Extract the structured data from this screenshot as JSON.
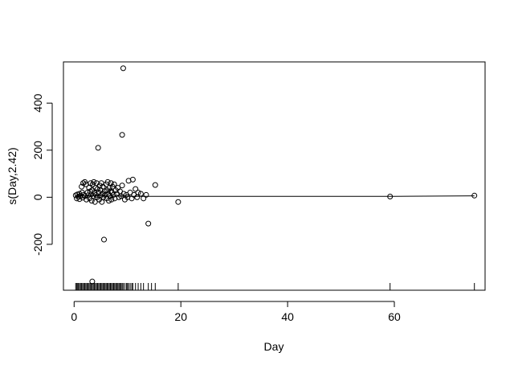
{
  "chart_data": {
    "type": "scatter",
    "title": "",
    "xlabel": "Day",
    "ylabel": "s(Day,2.42)",
    "xlim": [
      -2,
      77
    ],
    "ylim": [
      -395,
      575
    ],
    "x_ticks": [
      0,
      20,
      40,
      60
    ],
    "x_tick_labels": [
      "0",
      "20",
      "40",
      "60"
    ],
    "y_ticks": [
      -200,
      0,
      200,
      400
    ],
    "y_tick_labels": [
      "-200",
      "0",
      "200",
      "400"
    ],
    "grid": false,
    "legend": "none",
    "colors": {
      "points": "#000000",
      "line": "#000000",
      "rug": "#000000"
    },
    "smooth_line": {
      "x": [
        0.5,
        2,
        4,
        6,
        8,
        10,
        14,
        20,
        30,
        40,
        55,
        60,
        75
      ],
      "y": [
        8,
        7,
        6,
        5,
        4.5,
        4,
        4,
        4,
        4,
        4,
        4,
        4,
        6
      ]
    },
    "points": [
      [
        0.3,
        8
      ],
      [
        0.5,
        -5
      ],
      [
        0.6,
        12
      ],
      [
        0.8,
        3
      ],
      [
        1.0,
        15
      ],
      [
        1.0,
        -8
      ],
      [
        1.2,
        6
      ],
      [
        1.4,
        45
      ],
      [
        1.5,
        20
      ],
      [
        1.6,
        -2
      ],
      [
        1.7,
        60
      ],
      [
        1.8,
        10
      ],
      [
        2.0,
        65
      ],
      [
        2.0,
        5
      ],
      [
        2.2,
        55
      ],
      [
        2.3,
        -10
      ],
      [
        2.5,
        20
      ],
      [
        2.6,
        8
      ],
      [
        2.8,
        40
      ],
      [
        2.9,
        -5
      ],
      [
        3.0,
        25
      ],
      [
        3.1,
        60
      ],
      [
        3.2,
        12
      ],
      [
        3.3,
        -15
      ],
      [
        3.4,
        30
      ],
      [
        3.5,
        55
      ],
      [
        3.6,
        5
      ],
      [
        3.7,
        65
      ],
      [
        3.8,
        18
      ],
      [
        3.9,
        -20
      ],
      [
        4.0,
        40
      ],
      [
        4.1,
        10
      ],
      [
        4.2,
        60
      ],
      [
        4.3,
        0
      ],
      [
        4.4,
        35
      ],
      [
        4.5,
        210
      ],
      [
        4.6,
        20
      ],
      [
        4.7,
        -10
      ],
      [
        4.8,
        50
      ],
      [
        4.9,
        5
      ],
      [
        5.0,
        30
      ],
      [
        5.1,
        60
      ],
      [
        5.2,
        -20
      ],
      [
        5.3,
        15
      ],
      [
        5.4,
        45
      ],
      [
        5.5,
        0
      ],
      [
        5.6,
        -180
      ],
      [
        5.7,
        25
      ],
      [
        5.8,
        10
      ],
      [
        6.0,
        55
      ],
      [
        6.1,
        -5
      ],
      [
        6.2,
        30
      ],
      [
        6.3,
        65
      ],
      [
        6.4,
        15
      ],
      [
        6.5,
        -15
      ],
      [
        6.6,
        40
      ],
      [
        6.7,
        5
      ],
      [
        6.8,
        25
      ],
      [
        6.9,
        60
      ],
      [
        7.0,
        -10
      ],
      [
        7.1,
        20
      ],
      [
        7.2,
        45
      ],
      [
        7.4,
        10
      ],
      [
        7.5,
        55
      ],
      [
        7.6,
        -5
      ],
      [
        7.8,
        30
      ],
      [
        8.0,
        15
      ],
      [
        8.2,
        40
      ],
      [
        8.4,
        0
      ],
      [
        8.6,
        25
      ],
      [
        8.8,
        5
      ],
      [
        9.0,
        265
      ],
      [
        9.0,
        50
      ],
      [
        9.2,
        548
      ],
      [
        9.3,
        15
      ],
      [
        9.5,
        -10
      ],
      [
        9.8,
        10
      ],
      [
        10.0,
        0
      ],
      [
        10.2,
        70
      ],
      [
        10.5,
        20
      ],
      [
        10.8,
        -5
      ],
      [
        11.0,
        75
      ],
      [
        11.2,
        10
      ],
      [
        11.5,
        35
      ],
      [
        11.8,
        0
      ],
      [
        12.0,
        20
      ],
      [
        12.5,
        15
      ],
      [
        13.0,
        -5
      ],
      [
        13.5,
        10
      ],
      [
        13.9,
        -112
      ],
      [
        15.2,
        52
      ],
      [
        19.5,
        -20
      ],
      [
        59.2,
        3
      ],
      [
        75.0,
        7
      ]
    ],
    "rug_x": [
      0.3,
      0.5,
      0.6,
      0.8,
      1.0,
      1.2,
      1.4,
      1.6,
      1.8,
      2.0,
      2.2,
      2.4,
      2.6,
      2.8,
      3.0,
      3.2,
      3.4,
      3.6,
      3.8,
      4.0,
      4.2,
      4.4,
      4.6,
      4.8,
      5.0,
      5.2,
      5.4,
      5.6,
      5.8,
      6.0,
      6.2,
      6.4,
      6.6,
      6.8,
      7.0,
      7.2,
      7.4,
      7.6,
      7.8,
      8.0,
      8.2,
      8.4,
      8.6,
      8.8,
      9.0,
      9.2,
      9.5,
      9.8,
      10.0,
      10.2,
      10.5,
      10.8,
      11.0,
      11.5,
      12.0,
      12.5,
      13.0,
      13.9,
      14.5,
      15.2,
      19.5,
      59.2,
      75.0
    ],
    "highlight_point": [
      3.4,
      -358
    ]
  }
}
